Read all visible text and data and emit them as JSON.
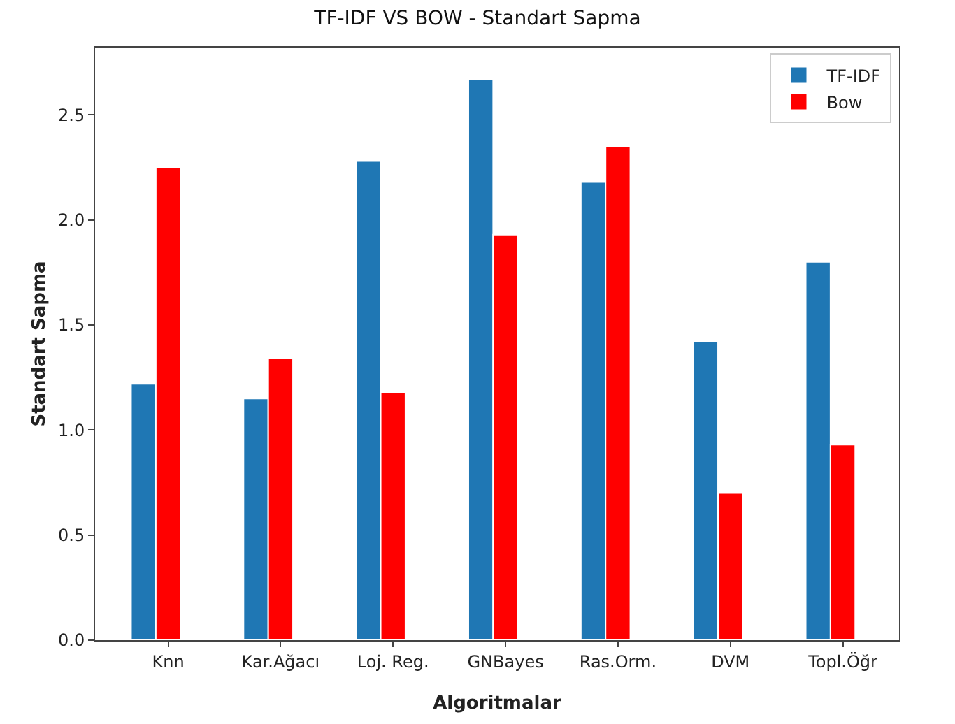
{
  "chart_data": {
    "type": "bar",
    "title": "TF-IDF VS BOW - Standart Sapma",
    "xlabel": "Algoritmalar",
    "ylabel": "Standart Sapma",
    "categories": [
      "Knn",
      "Kar.Ağacı",
      "Loj. Reg.",
      "GNBayes",
      "Ras.Orm.",
      "DVM",
      "Topl.Öğr"
    ],
    "series": [
      {
        "name": "TF-IDF",
        "color": "#1f77b4",
        "values": [
          1.22,
          1.15,
          2.28,
          2.67,
          2.18,
          1.42,
          1.8
        ]
      },
      {
        "name": "Bow",
        "color": "#ff0000",
        "values": [
          2.25,
          1.34,
          1.18,
          1.93,
          2.35,
          0.7,
          0.93
        ]
      }
    ],
    "ylim": [
      0,
      2.82
    ],
    "yticks": [
      {
        "value": 0,
        "label": "0.0"
      },
      0.5,
      {
        "value": 1,
        "label": "1.0"
      },
      1.5,
      {
        "value": 2,
        "label": "2.0"
      },
      2.5
    ],
    "grid": false,
    "legend": "top right"
  }
}
